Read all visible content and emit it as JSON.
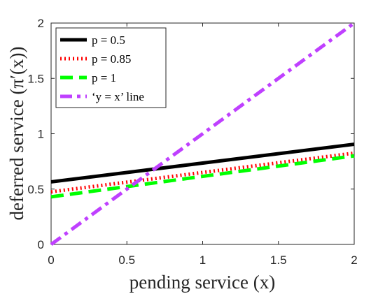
{
  "chart_data": {
    "type": "line",
    "xlabel": "pending service (x)",
    "ylabel": "deferred service (π′(x))",
    "xlim": [
      0,
      2
    ],
    "ylim": [
      0,
      2
    ],
    "x_ticks": [
      "0",
      "0.5",
      "1",
      "1.5",
      "2"
    ],
    "y_ticks": [
      "0",
      "0.5",
      "1",
      "1.5",
      "2"
    ],
    "legend_position": "top-left",
    "grid": false,
    "series": [
      {
        "name": "p = 0.5",
        "x": [
          0,
          2
        ],
        "y": [
          0.565,
          0.905
        ],
        "color": "#000000",
        "style": "solid"
      },
      {
        "name": "p = 0.85",
        "x": [
          0,
          2
        ],
        "y": [
          0.475,
          0.825
        ],
        "color": "#ff0000",
        "style": "dotted"
      },
      {
        "name": "p = 1",
        "x": [
          0,
          2
        ],
        "y": [
          0.43,
          0.8
        ],
        "color": "#00ff00",
        "style": "dashed"
      },
      {
        "name": "‘y = x’ line",
        "x": [
          0,
          2
        ],
        "y": [
          0,
          2
        ],
        "color": "#bf40ff",
        "style": "dashdot"
      }
    ]
  }
}
